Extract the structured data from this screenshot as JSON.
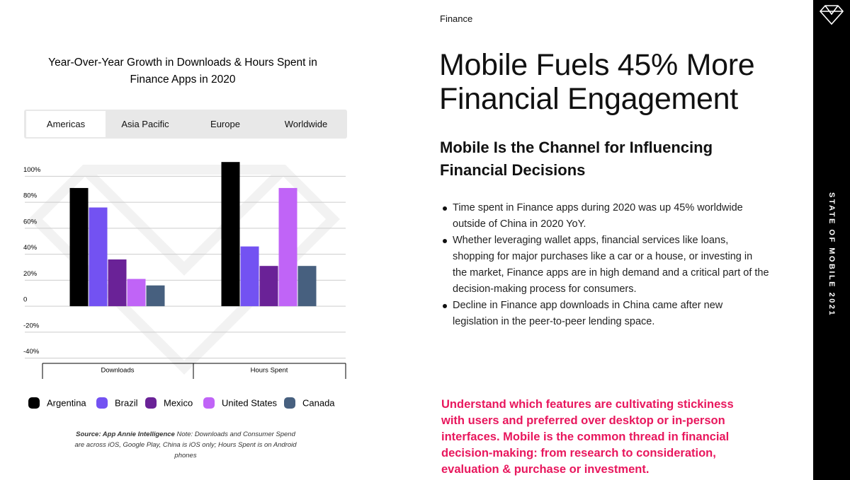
{
  "section": "Finance",
  "headline": "Mobile Fuels 45% More Financial Engagement",
  "subheading": "Mobile Is the Channel for Influencing Financial Decisions",
  "bullets": [
    "Time spent in Finance apps during 2020 was up 45% worldwide outside of China in 2020 YoY.",
    "Whether leveraging wallet apps, financial services like loans, shopping for major purchases like a car or a house, or investing in the market, Finance apps are in high demand and a critical part of the decision-making process for consumers.",
    "Decline in Finance app downloads in China came after new legislation in the peer-to-peer lending space."
  ],
  "callout": "Understand which features are cultivating stickiness with users and preferred over desktop or in-person interfaces. Mobile is the common thread in financial decision-making: from research to consideration, evaluation & purchase or investment.",
  "sidebar": "STATE OF MOBILE 2021",
  "tabs": [
    "Americas",
    "Asia Pacific",
    "Europe",
    "Worldwide"
  ],
  "source_bold": "Source: App Annie Intelligence",
  "source_note": "Note: Downloads and Consumer Spend are across iOS, Google Play, China is iOS only; Hours Spent is on Android phones",
  "chart_data": {
    "type": "bar",
    "title": "Year-Over-Year Growth in Downloads & Hours Spent in Finance Apps in 2020",
    "categories": [
      "Downloads",
      "Hours Spent"
    ],
    "series": [
      {
        "name": "Argentina",
        "color": "#000000",
        "values": [
          91,
          111
        ]
      },
      {
        "name": "Brazil",
        "color": "#7352f2",
        "values": [
          76,
          46
        ]
      },
      {
        "name": "Mexico",
        "color": "#6a2297",
        "values": [
          36,
          31
        ]
      },
      {
        "name": "United States",
        "color": "#c064f7",
        "values": [
          21,
          91
        ]
      },
      {
        "name": "Canada",
        "color": "#47607f",
        "values": [
          16,
          31
        ]
      }
    ],
    "ylim": [
      -44,
      116
    ],
    "yticks": [
      {
        "value": -40,
        "label": "-40%"
      },
      {
        "value": -20,
        "label": "-20%"
      },
      0,
      {
        "value": 20,
        "label": "20%"
      },
      {
        "value": 40,
        "label": "40%"
      },
      {
        "value": 60,
        "label": "60%"
      },
      {
        "value": 80,
        "label": "80%"
      },
      {
        "value": 100,
        "label": "100%"
      }
    ],
    "grid": true
  }
}
